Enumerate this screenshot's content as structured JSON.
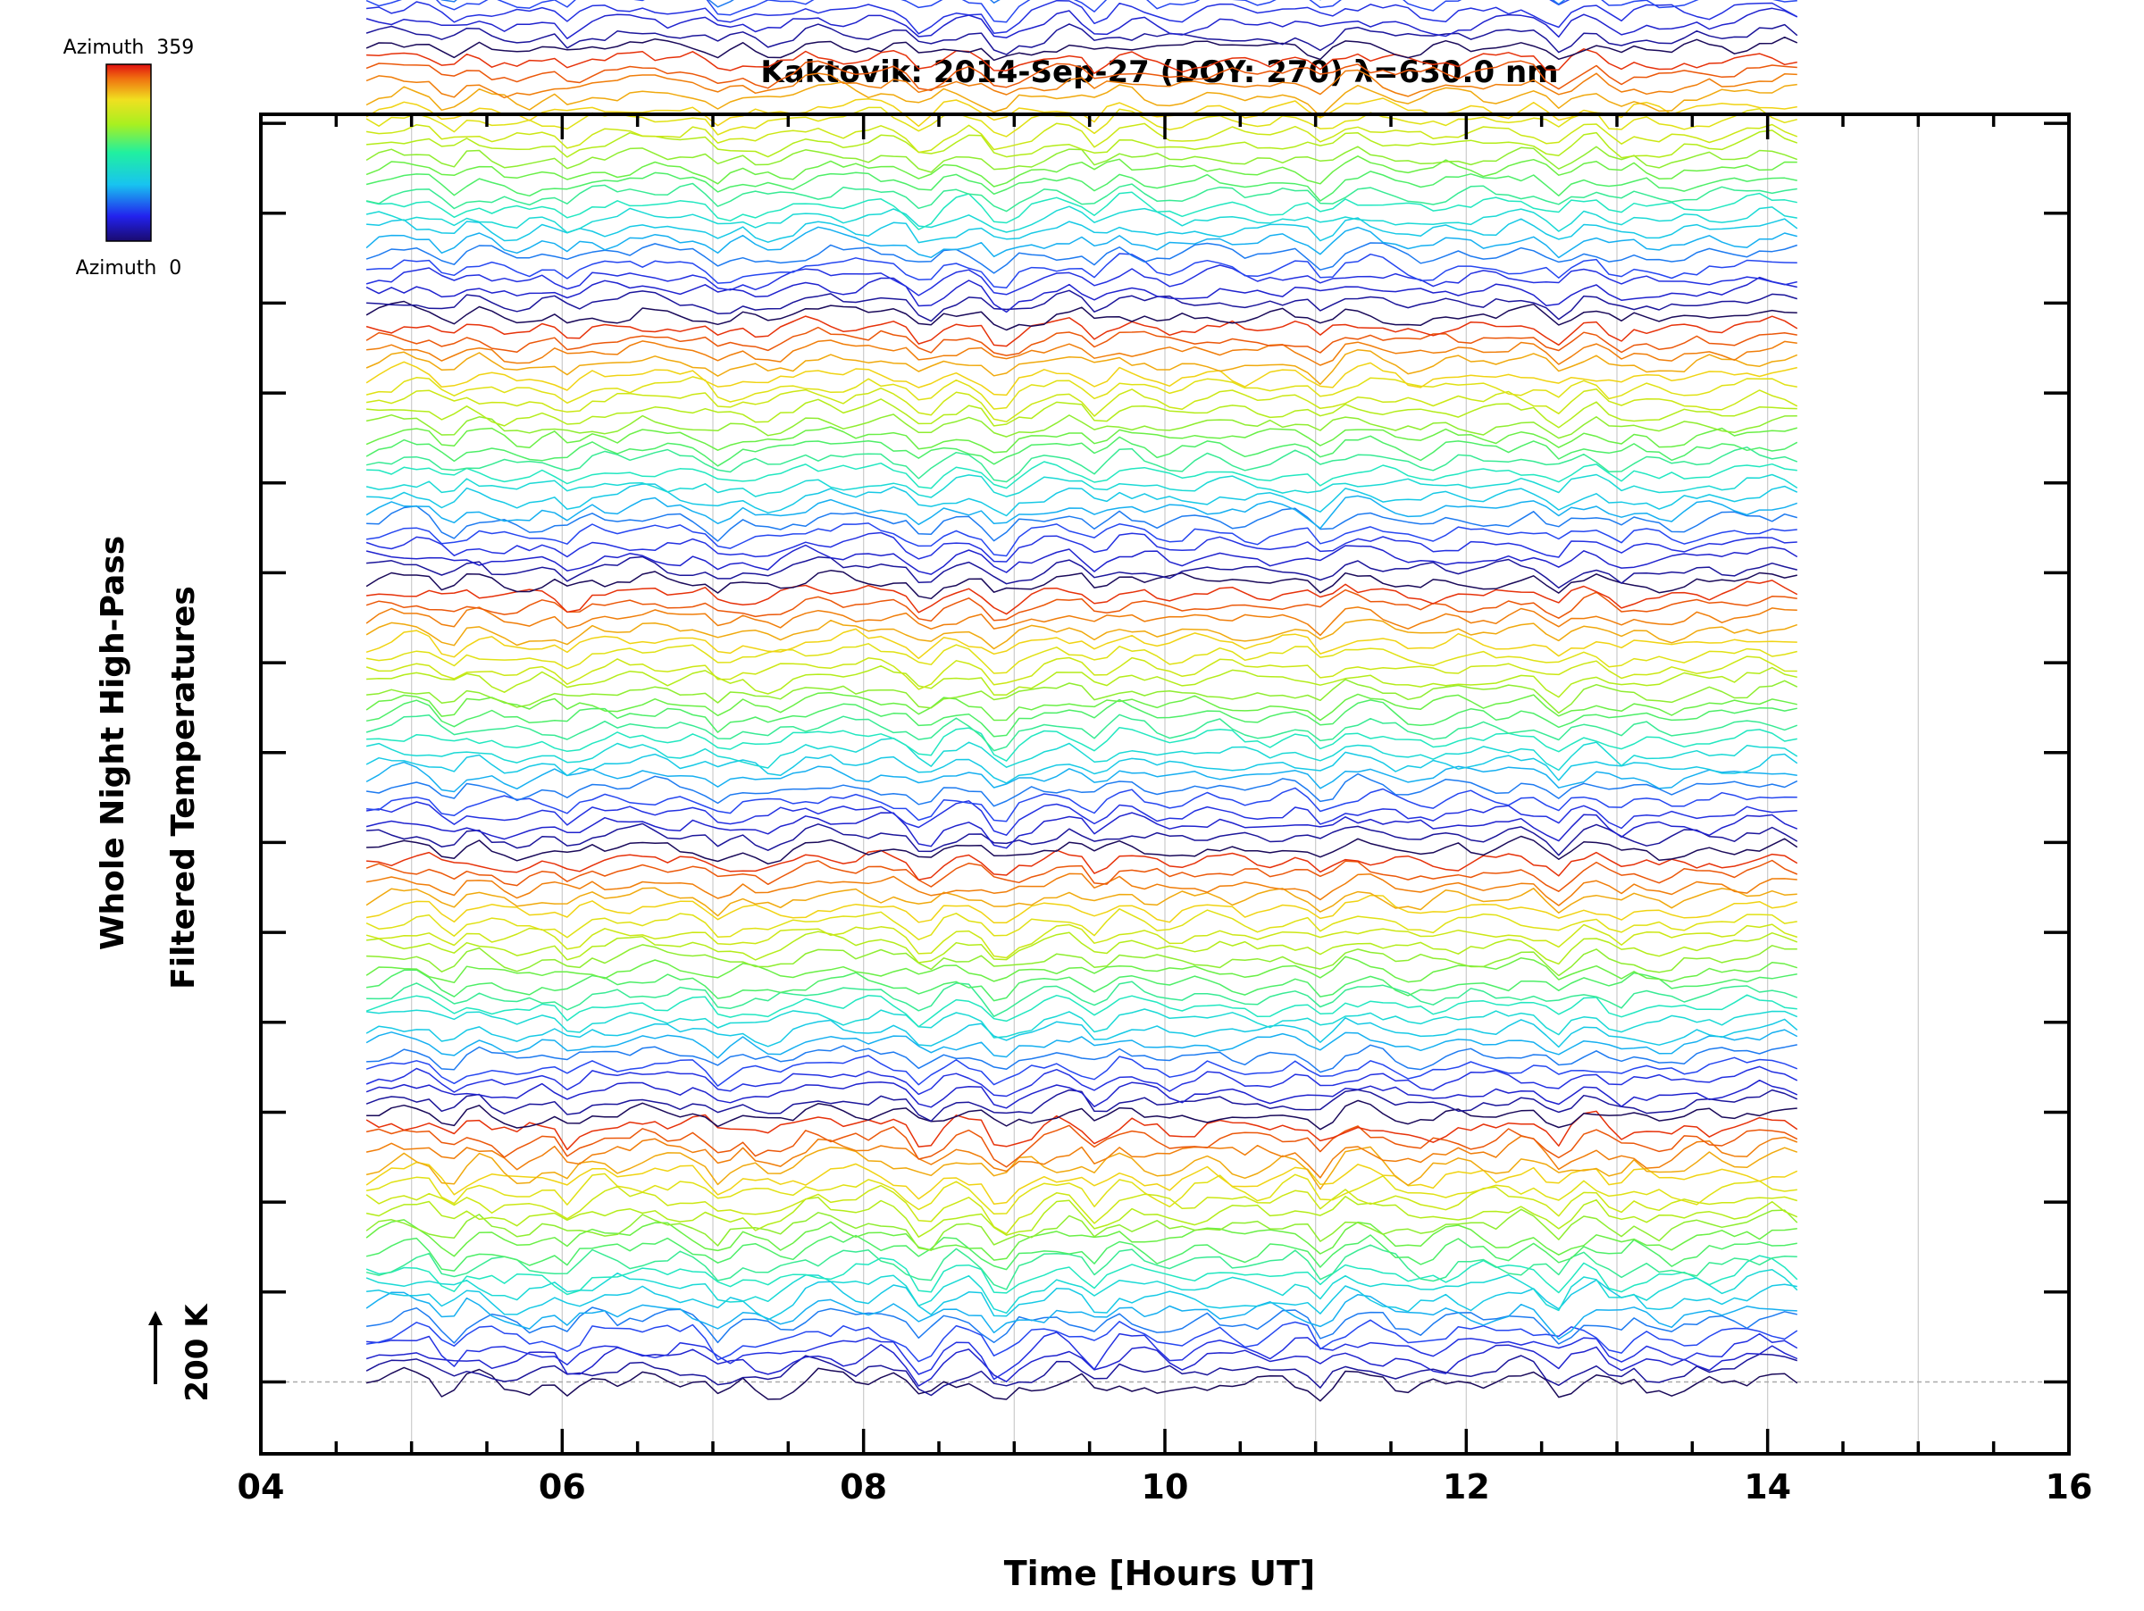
{
  "chart_data": {
    "type": "line",
    "title": "Kaktovik: 2014-Sep-27 (DOY: 270) λ=630.0 nm",
    "xlabel": "Time [Hours UT]",
    "ylabel_line1": "Whole Night High-Pass",
    "ylabel_line2": "Filtered Temperatures",
    "xlim": [
      4,
      16
    ],
    "x_ticks": [
      "04",
      "06",
      "08",
      "10",
      "12",
      "14",
      "16"
    ],
    "x_tick_values": [
      4,
      6,
      8,
      10,
      12,
      14,
      16
    ],
    "x_minor_step": 0.5,
    "data_range_hours": [
      4.7,
      14.2
    ],
    "sample_interval_hours": 0.0833,
    "ylim_offsets": [
      -0.8,
      14.1
    ],
    "y_tick_offsets": [
      0,
      1,
      2,
      3,
      4,
      5,
      6,
      7,
      8,
      9,
      10,
      11,
      12,
      13,
      14
    ],
    "y_unit_kelvin": 200,
    "scale_bar_label": "200 K",
    "reference_line_offset": 0,
    "grid": "vertical-hours",
    "trace_groups": 6,
    "traces_per_group": 22,
    "group_height_units": 2.97,
    "trace_spacing_units": 0.135,
    "trace_amplitude_units": 0.12,
    "common_dip_hours": [
      5.25,
      6.05,
      7.05,
      8.4,
      8.9,
      9.55,
      11.05,
      12.6,
      13.0
    ],
    "colorbar": {
      "top_label": "Azimuth  359",
      "bottom_label": "Azimuth  0",
      "azimuth_range": [
        0,
        359
      ],
      "colormap": "rainbow"
    },
    "colors": {
      "axis": "#000000",
      "grid": "#cfcfcf",
      "reference": "#aaaaaa"
    }
  }
}
